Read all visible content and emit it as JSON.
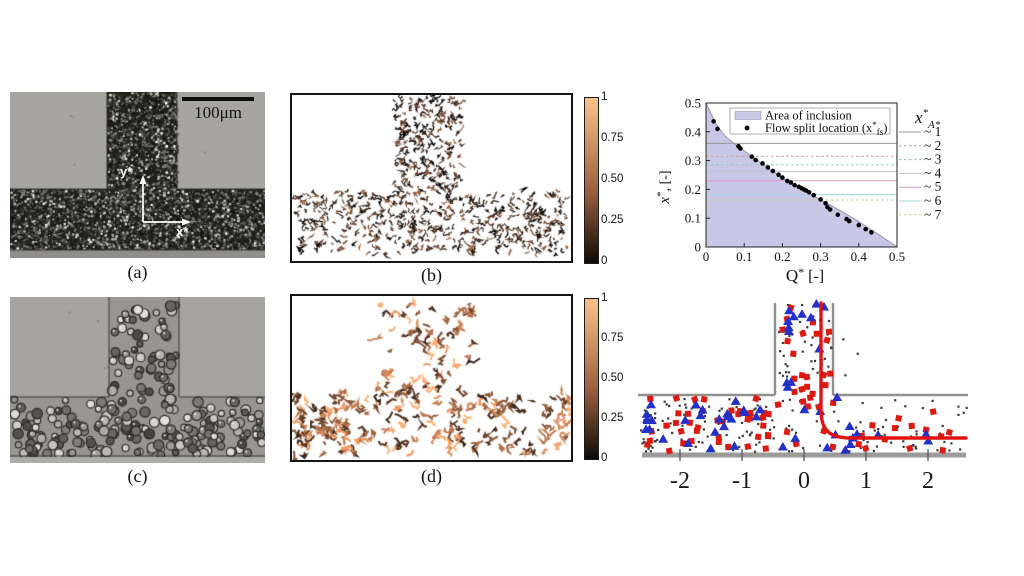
{
  "panels": {
    "a": {
      "caption": "(a)",
      "scale_bar_label": "100μm",
      "axis_vertical_label": "y*",
      "axis_horizontal_label": "x*"
    },
    "b": {
      "caption": "(b)",
      "colorbar_ticks": [
        "1",
        "0.75",
        "0.50",
        "0.25",
        "0"
      ]
    },
    "c": {
      "caption": "(c)"
    },
    "d": {
      "caption": "(d)",
      "colorbar_ticks": [
        "1",
        "0.75",
        "0.50",
        "0.25",
        "0"
      ]
    }
  },
  "colors": {
    "copper_top": "#ffc77f",
    "area_lavender": "#c9c7e6",
    "wall_gray": "#a7a5a2",
    "red_marker": "#dd1a10",
    "blue_marker": "#2431c8",
    "streamline_red": "#e01212",
    "plot_wall_gray": "#8f8f8f"
  },
  "chart_data": [
    {
      "id": "flow-split-chart",
      "type": "scatter",
      "xlabel_parts": [
        "Q",
        "*",
        " [-]"
      ],
      "ylabel_parts": [
        "x",
        "*",
        ", [-]"
      ],
      "xlim": [
        0,
        0.5
      ],
      "ylim": [
        0,
        0.5
      ],
      "xticks": [
        "0",
        "0.1",
        "0.2",
        "0.3",
        "0.4",
        "0.5"
      ],
      "xtick_values": [
        0,
        0.1,
        0.2,
        0.3,
        0.4,
        0.5
      ],
      "yticks": [
        "0",
        "0.1",
        "0.2",
        "0.3",
        "0.4",
        "0.5"
      ],
      "ytick_values": [
        0,
        0.1,
        0.2,
        0.3,
        0.4,
        0.5
      ],
      "legend": [
        {
          "label_parts": [
            "Area of inclusion"
          ],
          "swatch": "area"
        },
        {
          "label_parts": [
            "Flow split location (x",
            "*",
            "fs",
            ")"
          ],
          "swatch": "dot"
        }
      ],
      "area_fill_color": "#c9c7e6",
      "area_boundary": [
        [
          0,
          0.5
        ],
        [
          0.025,
          0.43
        ],
        [
          0.05,
          0.385
        ],
        [
          0.075,
          0.358
        ],
        [
          0.1,
          0.334
        ],
        [
          0.125,
          0.31
        ],
        [
          0.15,
          0.287
        ],
        [
          0.175,
          0.263
        ],
        [
          0.2,
          0.24
        ],
        [
          0.225,
          0.219
        ],
        [
          0.25,
          0.2
        ],
        [
          0.275,
          0.182
        ],
        [
          0.3,
          0.164
        ],
        [
          0.325,
          0.146
        ],
        [
          0.35,
          0.127
        ],
        [
          0.375,
          0.108
        ],
        [
          0.4,
          0.088
        ],
        [
          0.425,
          0.066
        ],
        [
          0.45,
          0.045
        ],
        [
          0.475,
          0.023
        ],
        [
          0.5,
          0
        ]
      ],
      "points": [
        [
          0.02,
          0.436
        ],
        [
          0.03,
          0.41
        ],
        [
          0.085,
          0.35
        ],
        [
          0.09,
          0.342
        ],
        [
          0.12,
          0.314
        ],
        [
          0.13,
          0.302
        ],
        [
          0.148,
          0.29
        ],
        [
          0.162,
          0.276
        ],
        [
          0.175,
          0.264
        ],
        [
          0.19,
          0.251
        ],
        [
          0.2,
          0.241
        ],
        [
          0.213,
          0.229
        ],
        [
          0.222,
          0.224
        ],
        [
          0.232,
          0.215
        ],
        [
          0.243,
          0.209
        ],
        [
          0.25,
          0.204
        ],
        [
          0.256,
          0.2
        ],
        [
          0.262,
          0.196
        ],
        [
          0.27,
          0.19
        ],
        [
          0.282,
          0.18
        ],
        [
          0.3,
          0.165
        ],
        [
          0.313,
          0.152
        ],
        [
          0.318,
          0.138
        ],
        [
          0.325,
          0.13
        ],
        [
          0.345,
          0.112
        ],
        [
          0.368,
          0.097
        ],
        [
          0.375,
          0.09
        ],
        [
          0.4,
          0.076
        ],
        [
          0.418,
          0.062
        ],
        [
          0.433,
          0.051
        ]
      ],
      "point_color": "#000000",
      "reference_lines": {
        "title_parts": [
          "x",
          "*",
          "A*"
        ],
        "entries": [
          {
            "label": "~ 1",
            "y": 0.36,
            "color": "#9a9a9a",
            "dash": "solid"
          },
          {
            "label": "~ 2",
            "y": 0.315,
            "color": "#c09c9c",
            "dash": "dotted"
          },
          {
            "label": "~ 3",
            "y": 0.285,
            "color": "#8cc6b6",
            "dash": "dotted"
          },
          {
            "label": "~ 4",
            "y": 0.262,
            "color": "#c2c2d0",
            "dash": "solid"
          },
          {
            "label": "~ 5",
            "y": 0.23,
            "color": "#d89cce",
            "dash": "solid"
          },
          {
            "label": "~ 6",
            "y": 0.182,
            "color": "#a2d2de",
            "dash": "solid"
          },
          {
            "label": "~ 7",
            "y": 0.163,
            "color": "#d8c794",
            "dash": "dotted"
          }
        ]
      }
    },
    {
      "id": "tjunction-particle-plot",
      "type": "scatter",
      "xtick_labels": [
        "-2",
        "-1",
        "0",
        "1",
        "2"
      ],
      "xtick_values": [
        -2,
        -1,
        0,
        1,
        2
      ],
      "wall_color": "#8f8f8f",
      "streamline_color": "#e01212",
      "series": [
        {
          "name": "red-square-particles",
          "marker": "square",
          "color": "#dd1a10"
        },
        {
          "name": "blue-triangle-particles",
          "marker": "triangle",
          "color": "#2431c8"
        },
        {
          "name": "small-dot-particles",
          "marker": "dot",
          "color": "#3a3a3a"
        }
      ]
    }
  ],
  "render_params": {
    "seed": 1337,
    "micrograph_a": {
      "speckles": 5600
    },
    "micrograph_c": {
      "cells": 245
    },
    "tracks_b": {
      "vertical": 270,
      "horizontal": 540
    },
    "tracks_d": {
      "vertical": 82,
      "horizontal": 185,
      "left_cluster": 42
    },
    "tjunction_regions": [
      {
        "x": [
          12,
          145
        ],
        "y": [
          106,
          159
        ],
        "squares": 40,
        "triangles": 26,
        "dots": 90
      },
      {
        "x": [
          150,
          203
        ],
        "y": [
          10,
          102
        ],
        "squares": 20,
        "triangles": 13,
        "dots": 45
      },
      {
        "x": [
          146,
          210
        ],
        "y": [
          104,
          159
        ],
        "squares": 10,
        "triangles": 7,
        "dots": 20
      },
      {
        "x": [
          214,
          338
        ],
        "y": [
          132,
          159
        ],
        "squares": 12,
        "triangles": 8,
        "dots": 40
      },
      {
        "x": [
          214,
          338
        ],
        "y": [
          106,
          132
        ],
        "squares": 2,
        "triangles": 0,
        "dots": 12
      },
      {
        "x": [
          212,
          252
        ],
        "y": [
          40,
          100
        ],
        "squares": 0,
        "triangles": 0,
        "dots": 3
      }
    ]
  }
}
